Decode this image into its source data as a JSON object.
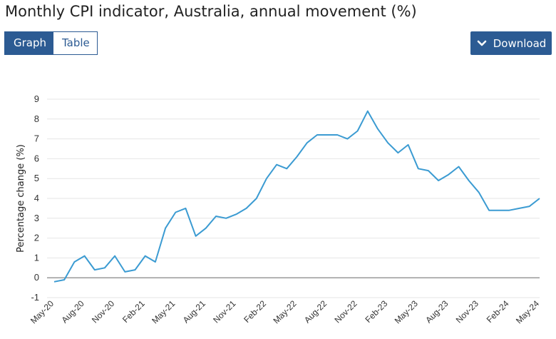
{
  "title": "Monthly CPI indicator, Australia, annual movement (%)",
  "toolbar": {
    "graph_label": "Graph",
    "table_label": "Table",
    "download_label": "Download"
  },
  "colors": {
    "accent": "#2c5b93",
    "line": "#3b9bd2",
    "grid": "#e6e6e6",
    "zero_line": "#9a9a9a"
  },
  "icons": {
    "download": "chevron-down-icon"
  },
  "chart_data": {
    "type": "line",
    "ylabel": "Percentage change (%)",
    "xlabel": "",
    "ylim": [
      -1,
      9
    ],
    "yticks": [
      -1,
      0,
      1,
      2,
      3,
      4,
      5,
      6,
      7,
      8,
      9
    ],
    "grid": true,
    "x": [
      "May-20",
      "Jun-20",
      "Jul-20",
      "Aug-20",
      "Sep-20",
      "Oct-20",
      "Nov-20",
      "Dec-20",
      "Jan-21",
      "Feb-21",
      "Mar-21",
      "Apr-21",
      "May-21",
      "Jun-21",
      "Jul-21",
      "Aug-21",
      "Sep-21",
      "Oct-21",
      "Nov-21",
      "Dec-21",
      "Jan-22",
      "Feb-22",
      "Mar-22",
      "Apr-22",
      "May-22",
      "Jun-22",
      "Jul-22",
      "Aug-22",
      "Sep-22",
      "Oct-22",
      "Nov-22",
      "Dec-22",
      "Jan-23",
      "Feb-23",
      "Mar-23",
      "Apr-23",
      "May-23",
      "Jun-23",
      "Jul-23",
      "Aug-23",
      "Sep-23",
      "Oct-23",
      "Nov-23",
      "Dec-23",
      "Jan-24",
      "Feb-24",
      "Mar-24",
      "Apr-24",
      "May-24"
    ],
    "x_tick_labels": [
      "May-20",
      "Aug-20",
      "Nov-20",
      "Feb-21",
      "May-21",
      "Aug-21",
      "Nov-21",
      "Feb-22",
      "May-22",
      "Aug-22",
      "Nov-22",
      "Feb-23",
      "May-23",
      "Aug-23",
      "Nov-23",
      "Feb-24",
      "May-24"
    ],
    "series": [
      {
        "values": [
          -0.2,
          -0.1,
          0.8,
          1.1,
          0.4,
          0.5,
          1.1,
          0.3,
          0.4,
          1.1,
          0.8,
          2.5,
          3.3,
          3.5,
          2.1,
          2.5,
          3.1,
          3.0,
          3.2,
          3.5,
          4.0,
          5.0,
          5.7,
          5.5,
          6.1,
          6.8,
          7.2,
          7.2,
          7.2,
          7.0,
          7.4,
          8.4,
          7.5,
          6.8,
          6.3,
          6.7,
          5.5,
          5.4,
          4.9,
          5.2,
          5.6,
          4.9,
          4.3,
          3.4,
          3.4,
          3.4,
          3.5,
          3.6,
          4.0
        ]
      }
    ]
  }
}
